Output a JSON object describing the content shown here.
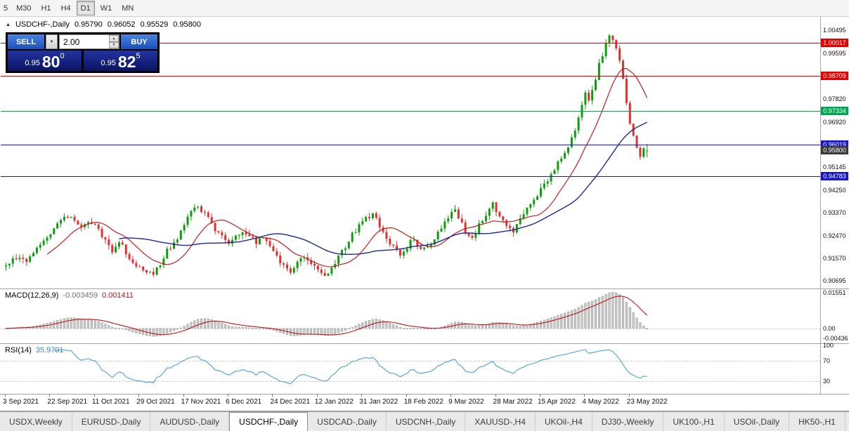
{
  "toolbar": {
    "timeframes": [
      "5",
      "M30",
      "H1",
      "H4",
      "D1",
      "W1",
      "MN"
    ],
    "active_timeframe": "D1"
  },
  "chart_header": {
    "collapse_icon": "▲",
    "symbol": "USDCHF-,Daily",
    "open": "0.95790",
    "high": "0.96052",
    "low": "0.95529",
    "close": "0.95800"
  },
  "trade_panel": {
    "sell_label": "SELL",
    "buy_label": "BUY",
    "volume": "2.00",
    "sell_price": {
      "small": "0.95",
      "big": "80",
      "sup": "0"
    },
    "buy_price": {
      "small": "0.95",
      "big": "82",
      "sup": "5"
    }
  },
  "price_axis_labels": [
    "1.00495",
    "0.99595",
    "0.97820",
    "0.96920",
    "0.95145",
    "0.94250",
    "0.93370",
    "0.92470",
    "0.91570",
    "0.90695"
  ],
  "levels": [
    {
      "price": "1.00017",
      "color": "#e60000"
    },
    {
      "price": "0.98709",
      "color": "#e60000"
    },
    {
      "price": "0.97334",
      "color": "#00a651"
    },
    {
      "price": "0.96019",
      "color": "#1515d0"
    },
    {
      "price": "0.94783",
      "color": "#1515d0"
    }
  ],
  "current_price_tag": {
    "text": "0.95800",
    "bg": "#3a3a3a"
  },
  "macd_panel": {
    "label": "MACD(12,26,9)",
    "value_main": "-0.003459",
    "value_signal": "0.001411",
    "axis_labels": [
      "0.01551",
      "0.00",
      "-0.00436"
    ],
    "range": [
      -0.0065,
      0.017
    ],
    "fast": 12,
    "slow": 26,
    "signal": 9,
    "hist_fill": "#cccccc",
    "hist_stroke": "#999999",
    "signal_color": "#c01414"
  },
  "rsi_panel": {
    "label": "RSI(14)",
    "value": "35.9701",
    "axis_labels": [
      "100",
      "70",
      "30"
    ],
    "dashed_levels": [
      70,
      30
    ],
    "range": [
      5,
      103
    ],
    "period": 14,
    "color": "#4d9fd6"
  },
  "date_axis": [
    {
      "text": "3 Sep 2021",
      "bar": 0
    },
    {
      "text": "22 Sep 2021",
      "bar": 13
    },
    {
      "text": "11 Oct 2021",
      "bar": 26
    },
    {
      "text": "29 Oct 2021",
      "bar": 39
    },
    {
      "text": "17 Nov 2021",
      "bar": 52
    },
    {
      "text": "6 Dec 2021",
      "bar": 65
    },
    {
      "text": "24 Dec 2021",
      "bar": 78
    },
    {
      "text": "12 Jan 2022",
      "bar": 91
    },
    {
      "text": "31 Jan 2022",
      "bar": 104
    },
    {
      "text": "18 Feb 2022",
      "bar": 117
    },
    {
      "text": "9 Mar 2022",
      "bar": 130
    },
    {
      "text": "28 Mar 2022",
      "bar": 143
    },
    {
      "text": "15 Apr 2022",
      "bar": 156
    },
    {
      "text": "4 May 2022",
      "bar": 169
    },
    {
      "text": "23 May 2022",
      "bar": 182
    }
  ],
  "tabs": {
    "items": [
      "USDX,Weekly",
      "EURUSD-,Daily",
      "AUDUSD-,Daily",
      "USDCHF-,Daily",
      "USDCAD-,Daily",
      "USDCNH-,Daily",
      "XAUUSD-,H4",
      "UKOil-,H4",
      "DJ30-,Weekly",
      "UK100-,H1",
      "USOil-,Daily",
      "HK50-,H1"
    ],
    "active_index": 3
  },
  "chart_data": {
    "type": "candlestick",
    "symbol": "USDCHF",
    "timeframe": "Daily",
    "bars": 188,
    "price_min": 0.904,
    "price_max": 1.01,
    "left_pad": 6,
    "bar_step": 4.878,
    "body_width": 3,
    "seed": 12,
    "noise": {
      "close": 0.0011,
      "wick": 0.0018
    },
    "up_color": "#0f9d0f",
    "down_color": "#e03131",
    "ma_fast": {
      "period": 13,
      "color": "#c01f1f"
    },
    "ma_slow": {
      "period": 34,
      "color": "#202a8e"
    },
    "last_candle": [
      0.9579,
      0.96052,
      0.95529,
      0.958
    ],
    "anchors": [
      [
        0,
        0.9135
      ],
      [
        3,
        0.9165
      ],
      [
        6,
        0.915
      ],
      [
        9,
        0.9205
      ],
      [
        12,
        0.9245
      ],
      [
        15,
        0.929
      ],
      [
        17,
        0.933
      ],
      [
        19,
        0.9315
      ],
      [
        22,
        0.928
      ],
      [
        25,
        0.93
      ],
      [
        28,
        0.9245
      ],
      [
        31,
        0.919
      ],
      [
        33,
        0.923
      ],
      [
        35,
        0.918
      ],
      [
        38,
        0.913
      ],
      [
        41,
        0.91
      ],
      [
        43,
        0.909
      ],
      [
        45,
        0.914
      ],
      [
        47,
        0.919
      ],
      [
        50,
        0.924
      ],
      [
        52,
        0.929
      ],
      [
        54,
        0.934
      ],
      [
        56,
        0.9365
      ],
      [
        58,
        0.933
      ],
      [
        60,
        0.929
      ],
      [
        63,
        0.9245
      ],
      [
        65,
        0.9215
      ],
      [
        67,
        0.9245
      ],
      [
        69,
        0.9265
      ],
      [
        71,
        0.9245
      ],
      [
        73,
        0.922
      ],
      [
        75,
        0.925
      ],
      [
        77,
        0.9205
      ],
      [
        79,
        0.9165
      ],
      [
        81,
        0.913
      ],
      [
        83,
        0.9105
      ],
      [
        85,
        0.914
      ],
      [
        87,
        0.9165
      ],
      [
        89,
        0.9135
      ],
      [
        91,
        0.912
      ],
      [
        93,
        0.909
      ],
      [
        95,
        0.9125
      ],
      [
        97,
        0.916
      ],
      [
        99,
        0.9205
      ],
      [
        101,
        0.925
      ],
      [
        103,
        0.929
      ],
      [
        105,
        0.932
      ],
      [
        107,
        0.933
      ],
      [
        109,
        0.9285
      ],
      [
        111,
        0.924
      ],
      [
        113,
        0.9205
      ],
      [
        115,
        0.9175
      ],
      [
        117,
        0.9205
      ],
      [
        119,
        0.9235
      ],
      [
        121,
        0.9185
      ],
      [
        123,
        0.92
      ],
      [
        125,
        0.924
      ],
      [
        127,
        0.927
      ],
      [
        129,
        0.9315
      ],
      [
        131,
        0.9345
      ],
      [
        133,
        0.93
      ],
      [
        134,
        0.9255
      ],
      [
        136,
        0.923
      ],
      [
        138,
        0.929
      ],
      [
        140,
        0.933
      ],
      [
        142,
        0.937
      ],
      [
        144,
        0.933
      ],
      [
        146,
        0.9285
      ],
      [
        148,
        0.9255
      ],
      [
        150,
        0.931
      ],
      [
        152,
        0.9355
      ],
      [
        154,
        0.9385
      ],
      [
        156,
        0.9425
      ],
      [
        158,
        0.9465
      ],
      [
        160,
        0.9505
      ],
      [
        162,
        0.955
      ],
      [
        164,
        0.96
      ],
      [
        166,
        0.9655
      ],
      [
        167,
        0.971
      ],
      [
        168,
        0.9765
      ],
      [
        169,
        0.98
      ],
      [
        170,
        0.9765
      ],
      [
        171,
        0.9815
      ],
      [
        172,
        0.9865
      ],
      [
        173,
        0.9915
      ],
      [
        174,
        0.9955
      ],
      [
        175,
        0.9995
      ],
      [
        176,
        1.0035
      ],
      [
        177,
        1.0015
      ],
      [
        178,
        0.9985
      ],
      [
        179,
        0.9935
      ],
      [
        180,
        0.9865
      ],
      [
        181,
        0.9775
      ],
      [
        182,
        0.9695
      ],
      [
        183,
        0.9635
      ],
      [
        184,
        0.9595
      ],
      [
        185,
        0.9565
      ],
      [
        186,
        0.959
      ],
      [
        187,
        0.958
      ]
    ]
  }
}
